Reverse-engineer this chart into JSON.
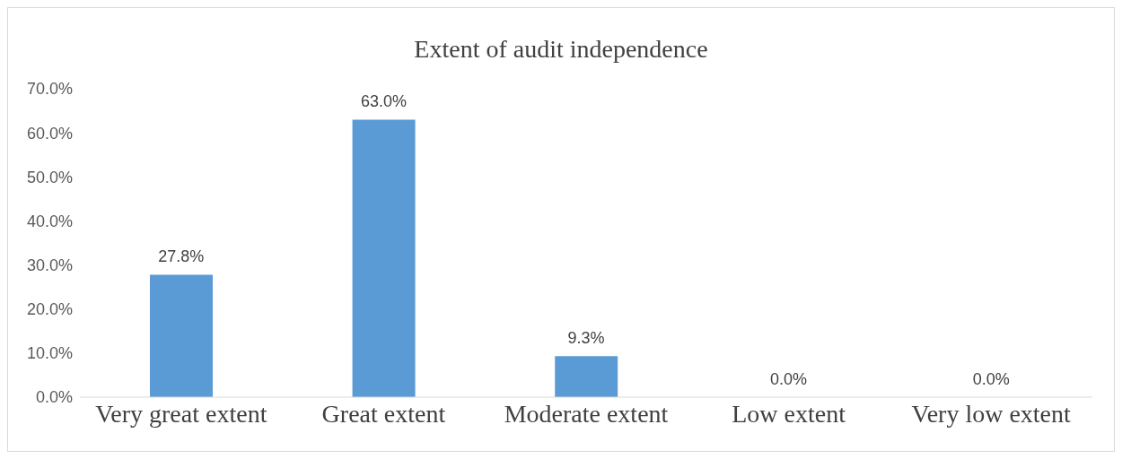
{
  "chart_data": {
    "type": "bar",
    "title": "Extent of audit independence",
    "categories": [
      "Very great extent",
      "Great extent",
      "Moderate extent",
      "Low extent",
      "Very low extent"
    ],
    "values": [
      27.8,
      63.0,
      9.3,
      0.0,
      0.0
    ],
    "value_labels": [
      "27.8%",
      "63.0%",
      "9.3%",
      "0.0%",
      "0.0%"
    ],
    "color": "#5b9bd5",
    "ylim": [
      0,
      70
    ],
    "yticks": [
      {
        "value": 0,
        "label": "0.0%"
      },
      {
        "value": 10,
        "label": "10.0%"
      },
      {
        "value": 20,
        "label": "20.0%"
      },
      {
        "value": 30,
        "label": "30.0%"
      },
      {
        "value": 40,
        "label": "40.0%"
      },
      {
        "value": 50,
        "label": "50.0%"
      },
      {
        "value": 60,
        "label": "60.0%"
      },
      {
        "value": 70,
        "label": "70.0%"
      }
    ],
    "grid": false,
    "legend": false
  }
}
